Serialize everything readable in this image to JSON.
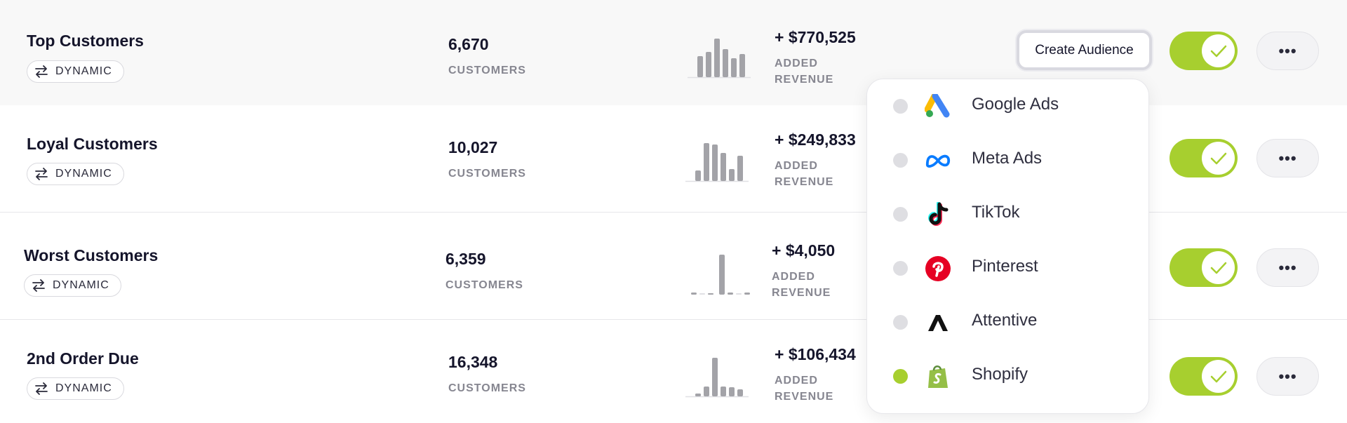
{
  "segments": [
    {
      "name": "Top Customers",
      "badge": "DYNAMIC",
      "count": "6,670",
      "count_label": "CUSTOMERS",
      "revenue": "+ $770,525",
      "revenue_label_1": "ADDED",
      "revenue_label_2": "REVENUE",
      "toggle_on": true
    },
    {
      "name": "Loyal Customers",
      "badge": "DYNAMIC",
      "count": "10,027",
      "count_label": "CUSTOMERS",
      "revenue": "+ $249,833",
      "revenue_label_1": "ADDED",
      "revenue_label_2": "REVENUE",
      "toggle_on": true
    },
    {
      "name": "Worst Customers",
      "badge": "DYNAMIC",
      "count": "6,359",
      "count_label": "CUSTOMERS",
      "revenue": "+ $4,050",
      "revenue_label_1": "ADDED",
      "revenue_label_2": "REVENUE",
      "toggle_on": true
    },
    {
      "name": "2nd Order Due",
      "badge": "DYNAMIC",
      "count": "16,348",
      "count_label": "CUSTOMERS",
      "revenue": "+ $106,434",
      "revenue_label_1": "ADDED",
      "revenue_label_2": "REVENUE",
      "toggle_on": true
    }
  ],
  "actions": {
    "create_audience": "Create Audience",
    "more": "•••"
  },
  "audience_menu": [
    {
      "label": "Google Ads",
      "icon": "google-ads-icon",
      "selected": false
    },
    {
      "label": "Meta Ads",
      "icon": "meta-icon",
      "selected": false
    },
    {
      "label": "TikTok",
      "icon": "tiktok-icon",
      "selected": false
    },
    {
      "label": "Pinterest",
      "icon": "pinterest-icon",
      "selected": false
    },
    {
      "label": "Attentive",
      "icon": "attentive-icon",
      "selected": false
    },
    {
      "label": "Shopify",
      "icon": "shopify-icon",
      "selected": true
    }
  ],
  "colors": {
    "accent": "#a7cf2f",
    "spark_bar": "#a3a3a8",
    "text": "#15152b",
    "muted": "#868690"
  }
}
